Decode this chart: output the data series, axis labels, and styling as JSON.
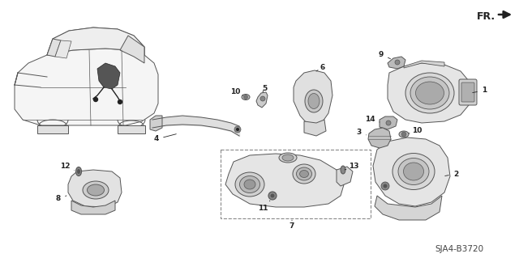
{
  "background_color": "#ffffff",
  "diagram_id": "SJA4-B3720",
  "fr_label": "FR.",
  "line_color": "#555555",
  "dark_color": "#222222",
  "fill_light": "#e8e8e8",
  "fill_mid": "#cccccc",
  "fill_dark": "#999999"
}
